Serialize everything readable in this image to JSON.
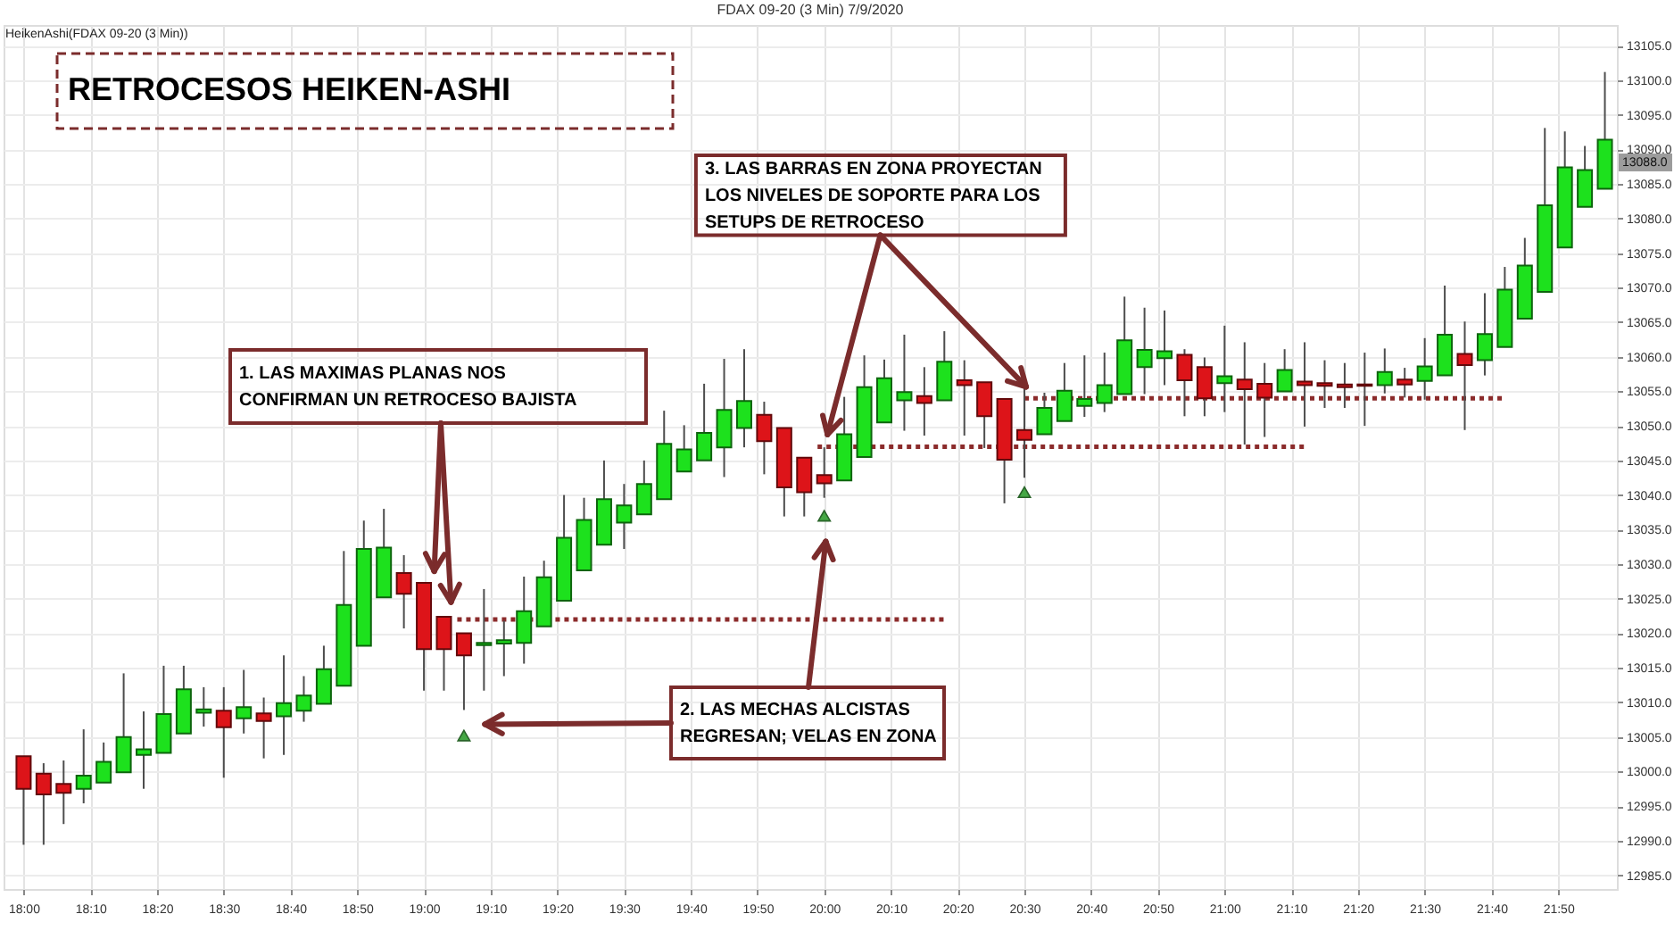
{
  "chart_data": {
    "type": "candlestick",
    "title": "RETROCESOS HEIKEN-ASHI",
    "subtitle": "FDAX 09-20 (3 Min) 7/9/2020",
    "annotations": [
      "HeikenAshi(FDAX 09-20 (3 Min))",
      "1. LAS MAXIMAS PLANAS NOS\nCONFIRMAN UN RETROCESO BAJISTA",
      "2. LAS MECHAS ALCISTAS\nREGRESAN; VELAS EN ZONA",
      {
        "text": "3. LAS BARRAS EN ZONA PROYECTAN\nLOS NIVELES DE SOPORTE PARA LOS\nSETUPS DE RETROCESO",
        "x": 20.0,
        "y": 13047
      },
      "13088.0"
    ],
    "x": [
      18.0,
      18.05,
      18.1,
      18.15,
      18.2,
      18.25,
      18.3,
      18.35,
      18.4,
      18.45,
      18.5,
      18.55,
      18.6,
      18.65,
      18.7,
      18.75,
      18.8,
      18.85,
      18.9,
      18.95,
      19.0,
      19.05,
      19.1,
      19.15,
      19.2,
      19.25,
      19.3,
      19.35,
      19.4,
      19.45,
      19.5,
      19.55,
      19.6,
      19.65,
      19.7,
      19.75,
      19.8,
      19.85,
      19.9,
      19.95,
      20.0,
      20.05,
      20.1,
      20.15,
      20.2,
      20.25,
      20.3,
      20.35,
      20.4,
      20.45,
      20.5,
      20.55,
      20.6,
      20.65,
      20.7,
      20.75,
      20.8,
      20.85,
      20.9,
      20.95,
      21.0,
      21.05,
      21.1,
      21.15,
      21.2,
      21.25,
      21.3,
      21.35,
      21.4,
      21.45,
      21.5,
      21.55,
      21.6,
      21.65,
      21.7,
      21.75,
      21.8,
      21.85,
      21.9,
      21.95
    ],
    "ohlc": [
      [
        13002.2,
        13002.2,
        12989.4,
        12997.5
      ],
      [
        12999.7,
        13001.2,
        12989.4,
        12996.7
      ],
      [
        12998.2,
        13001.6,
        12992.4,
        12996.9
      ],
      [
        12997.5,
        13006.1,
        12995.4,
        12999.4
      ],
      [
        12998.4,
        13004.2,
        12998.4,
        13001.4
      ],
      [
        12999.9,
        13014.2,
        12999.9,
        13005.0
      ],
      [
        13002.4,
        13008.7,
        12997.5,
        13003.2
      ],
      [
        13002.7,
        13015.3,
        13002.7,
        13008.3
      ],
      [
        13005.5,
        13015.3,
        13005.5,
        13011.9
      ],
      [
        13008.5,
        13012.2,
        13006.5,
        13009.0
      ],
      [
        13008.8,
        13012.2,
        12999.1,
        13006.4
      ],
      [
        13007.7,
        13014.7,
        13005.5,
        13009.3
      ],
      [
        13008.4,
        13010.7,
        13001.9,
        13007.3
      ],
      [
        13008.0,
        13016.8,
        13002.4,
        13009.9
      ],
      [
        13008.8,
        13013.8,
        13007.2,
        13011.0
      ],
      [
        13009.8,
        13018.2,
        13009.8,
        13014.8
      ],
      [
        13012.4,
        13031.9,
        13012.4,
        13024.1
      ],
      [
        13018.2,
        13036.3,
        13018.2,
        13032.2
      ],
      [
        13025.2,
        13038.0,
        13025.2,
        13032.4
      ],
      [
        13028.7,
        13031.3,
        13020.7,
        13025.7
      ],
      [
        13027.3,
        13027.3,
        13011.7,
        13017.7
      ],
      [
        13022.4,
        13022.4,
        13011.7,
        13017.7
      ],
      [
        13020.0,
        13020.0,
        13008.9,
        13016.8
      ],
      [
        13018.3,
        13026.4,
        13011.7,
        13018.6
      ],
      [
        13018.5,
        13021.8,
        13013.8,
        13019.0
      ],
      [
        13018.6,
        13028.2,
        13015.6,
        13023.2
      ],
      [
        13021.0,
        13030.5,
        13021.0,
        13028.1
      ],
      [
        13024.7,
        13040.0,
        13024.7,
        13033.8
      ],
      [
        13029.1,
        13039.6,
        13029.1,
        13036.4
      ],
      [
        13032.8,
        13045.0,
        13032.8,
        13039.4
      ],
      [
        13036.0,
        13041.6,
        13032.2,
        13038.5
      ],
      [
        13037.2,
        13045.0,
        13037.2,
        13041.6
      ],
      [
        13039.4,
        13052.2,
        13039.4,
        13047.4
      ],
      [
        13043.4,
        13050.1,
        13043.4,
        13046.6
      ],
      [
        13045.0,
        13056.1,
        13045.0,
        13049.0
      ],
      [
        13046.9,
        13059.7,
        13042.6,
        13052.3
      ],
      [
        13049.7,
        13061.1,
        13046.9,
        13053.6
      ],
      [
        13051.6,
        13053.5,
        13043.0,
        13047.8
      ],
      [
        13049.7,
        13049.7,
        13036.9,
        13041.1
      ],
      [
        13045.4,
        13045.4,
        13036.9,
        13040.4
      ],
      [
        13042.9,
        13046.9,
        13039.6,
        13041.7
      ],
      [
        13042.1,
        13054.2,
        13042.1,
        13048.8
      ],
      [
        13045.5,
        13060.2,
        13045.5,
        13055.6
      ],
      [
        13050.5,
        13059.6,
        13050.5,
        13056.9
      ],
      [
        13053.7,
        13063.2,
        13049.3,
        13054.9
      ],
      [
        13054.3,
        13058.5,
        13048.6,
        13053.3
      ],
      [
        13053.7,
        13063.7,
        13053.7,
        13059.3
      ],
      [
        13056.6,
        13059.5,
        13048.6,
        13055.9
      ],
      [
        13056.3,
        13056.3,
        13046.8,
        13051.4
      ],
      [
        13053.9,
        13053.9,
        13038.8,
        13045.1
      ],
      [
        13049.4,
        13055.6,
        13042.5,
        13048.0
      ],
      [
        13048.8,
        13054.8,
        13048.8,
        13052.6
      ],
      [
        13050.7,
        13059.1,
        13050.7,
        13055.1
      ],
      [
        13052.9,
        13060.2,
        13051.3,
        13053.9
      ],
      [
        13053.3,
        13060.6,
        13052.0,
        13055.9
      ],
      [
        13054.6,
        13068.7,
        13054.6,
        13062.4
      ],
      [
        13058.5,
        13067.1,
        13054.6,
        13061.0
      ],
      [
        13059.8,
        13066.7,
        13055.9,
        13060.8
      ],
      [
        13060.3,
        13061.1,
        13051.4,
        13056.6
      ],
      [
        13058.5,
        13059.9,
        13051.4,
        13054.0
      ],
      [
        13056.2,
        13064.5,
        13052.0,
        13057.2
      ],
      [
        13056.7,
        13062.1,
        13047.3,
        13055.3
      ],
      [
        13056.1,
        13059.1,
        13048.4,
        13054.1
      ],
      [
        13055.0,
        13061.1,
        13055.0,
        13058.1
      ],
      [
        13056.4,
        13062.1,
        13049.9,
        13055.9
      ],
      [
        13056.2,
        13059.5,
        13052.6,
        13055.8
      ],
      [
        13056.0,
        13059.1,
        13052.6,
        13055.6
      ],
      [
        13056.0,
        13060.6,
        13050.0,
        13055.8
      ],
      [
        13055.9,
        13061.2,
        13054.7,
        13057.8
      ],
      [
        13056.7,
        13058.4,
        13054.1,
        13056.0
      ],
      [
        13056.5,
        13062.7,
        13053.8,
        13058.6
      ],
      [
        13057.3,
        13070.3,
        13057.3,
        13063.2
      ],
      [
        13060.4,
        13065.1,
        13049.4,
        13058.8
      ],
      [
        13059.5,
        13069.2,
        13057.3,
        13063.3
      ],
      [
        13061.4,
        13073.0,
        13061.4,
        13069.7
      ],
      [
        13065.5,
        13077.2,
        13065.5,
        13073.2
      ],
      [
        13069.4,
        13093.1,
        13069.4,
        13081.9
      ],
      [
        13075.8,
        13092.6,
        13075.8,
        13087.4
      ],
      [
        13081.7,
        13090.5,
        13081.7,
        13087.0
      ],
      [
        13084.3,
        13101.2,
        13084.3,
        13091.4
      ]
    ],
    "colors": [
      "#dd1419",
      "#dd1419",
      "#dd1419",
      "#1de11d",
      "#1de11d",
      "#1de11d",
      "#1de11d",
      "#1de11d",
      "#1de11d",
      "#1de11d",
      "#dd1419",
      "#1de11d",
      "#dd1419",
      "#1de11d",
      "#1de11d",
      "#1de11d",
      "#1de11d",
      "#1de11d",
      "#1de11d",
      "#dd1419",
      "#dd1419",
      "#dd1419",
      "#dd1419",
      "#1de11d",
      "#1de11d",
      "#1de11d",
      "#1de11d",
      "#1de11d",
      "#1de11d",
      "#1de11d",
      "#1de11d",
      "#1de11d",
      "#1de11d",
      "#1de11d",
      "#1de11d",
      "#1de11d",
      "#1de11d",
      "#dd1419",
      "#dd1419",
      "#dd1419",
      "#dd1419",
      "#1de11d",
      "#1de11d",
      "#1de11d",
      "#1de11d",
      "#dd1419",
      "#1de11d",
      "#dd1419",
      "#dd1419",
      "#dd1419",
      "#dd1419",
      "#1de11d",
      "#1de11d",
      "#1de11d",
      "#1de11d",
      "#1de11d",
      "#1de11d",
      "#1de11d",
      "#dd1419",
      "#dd1419",
      "#1de11d",
      "#dd1419",
      "#dd1419",
      "#1de11d",
      "#dd1419",
      "#dd1419",
      "#dd1419",
      "#dd1419",
      "#1de11d",
      "#dd1419",
      "#1de11d",
      "#1de11d",
      "#dd1419",
      "#1de11d",
      "#1de11d",
      "#1de11d",
      "#1de11d",
      "#1de11d",
      "#1de11d",
      "#1de11d"
    ],
    "series": [
      {
        "type": "line",
        "color": "#8b2b2b",
        "line_style": "dotted",
        "x": [
          19.0833,
          20.3
        ],
        "values": [
          13022,
          13022
        ]
      },
      {
        "type": "line",
        "color": "#8b2b2b",
        "line_style": "dotted",
        "x": [
          19.9833,
          21.2
        ],
        "values": [
          13047,
          13047
        ]
      },
      {
        "type": "line",
        "color": "#8b2b2b",
        "line_style": "dotted",
        "x": [
          20.5,
          21.7
        ],
        "values": [
          13054,
          13054
        ]
      },
      {
        "type": "scatter",
        "color": "#45a845",
        "marker": "triangle",
        "x": [
          19.1,
          20.0,
          20.5
        ],
        "values": [
          13005.2,
          13037.0,
          13040.4
        ]
      }
    ],
    "xlim": [
      17.95,
      21.98
    ],
    "xticks": [
      {
        "value": 18.0,
        "label": "18:00"
      },
      {
        "value": 18.1667,
        "label": "18:10"
      },
      {
        "value": 18.3333,
        "label": "18:20"
      },
      {
        "value": 18.5,
        "label": "18:30"
      },
      {
        "value": 18.6667,
        "label": "18:40"
      },
      {
        "value": 18.8333,
        "label": "18:50"
      },
      {
        "value": 19.0,
        "label": "19:00"
      },
      {
        "value": 19.1667,
        "label": "19:10"
      },
      {
        "value": 19.3333,
        "label": "19:20"
      },
      {
        "value": 19.5,
        "label": "19:30"
      },
      {
        "value": 19.6667,
        "label": "19:40"
      },
      {
        "value": 19.8333,
        "label": "19:50"
      },
      {
        "value": 20.0,
        "label": "20:00"
      },
      {
        "value": 20.1667,
        "label": "20:10"
      },
      {
        "value": 20.3333,
        "label": "20:20"
      },
      {
        "value": 20.5,
        "label": "20:30"
      },
      {
        "value": 20.6667,
        "label": "20:40"
      },
      {
        "value": 20.8333,
        "label": "20:50"
      },
      {
        "value": 21.0,
        "label": "21:00"
      },
      {
        "value": 21.1667,
        "label": "21:10"
      },
      {
        "value": 21.3333,
        "label": "21:20"
      },
      {
        "value": 21.5,
        "label": "21:30"
      },
      {
        "value": 21.6667,
        "label": "21:40"
      },
      {
        "value": 21.8333,
        "label": "21:50"
      }
    ],
    "ylim": [
      12983,
      13108
    ],
    "yticks": [
      {
        "value": 12985,
        "label": "12985.0"
      },
      {
        "value": 12990,
        "label": "12990.0"
      },
      {
        "value": 12995,
        "label": "12995.0"
      },
      {
        "value": 13000,
        "label": "13000.0"
      },
      {
        "value": 13005,
        "label": "13005.0"
      },
      {
        "value": 13010,
        "label": "13010.0"
      },
      {
        "value": 13015,
        "label": "13015.0"
      },
      {
        "value": 13020,
        "label": "13020.0"
      },
      {
        "value": 13025,
        "label": "13025.0"
      },
      {
        "value": 13030,
        "label": "13030.0"
      },
      {
        "value": 13035,
        "label": "13035.0"
      },
      {
        "value": 13040,
        "label": "13040.0"
      },
      {
        "value": 13045,
        "label": "13045.0"
      },
      {
        "value": 13050,
        "label": "13050.0"
      },
      {
        "value": 13055,
        "label": "13055.0"
      },
      {
        "value": 13060,
        "label": "13060.0"
      },
      {
        "value": 13065,
        "label": "13065.0"
      },
      {
        "value": 13070,
        "label": "13070.0"
      },
      {
        "value": 13075,
        "label": "13075.0"
      },
      {
        "value": 13080,
        "label": "13080.0"
      },
      {
        "value": 13085,
        "label": "13085.0"
      },
      {
        "value": 13090,
        "label": "13090.0"
      },
      {
        "value": 13095,
        "label": "13095.0"
      },
      {
        "value": 13100,
        "label": "13100.0"
      },
      {
        "value": 13105,
        "label": "13105.0"
      }
    ],
    "grid": true
  }
}
